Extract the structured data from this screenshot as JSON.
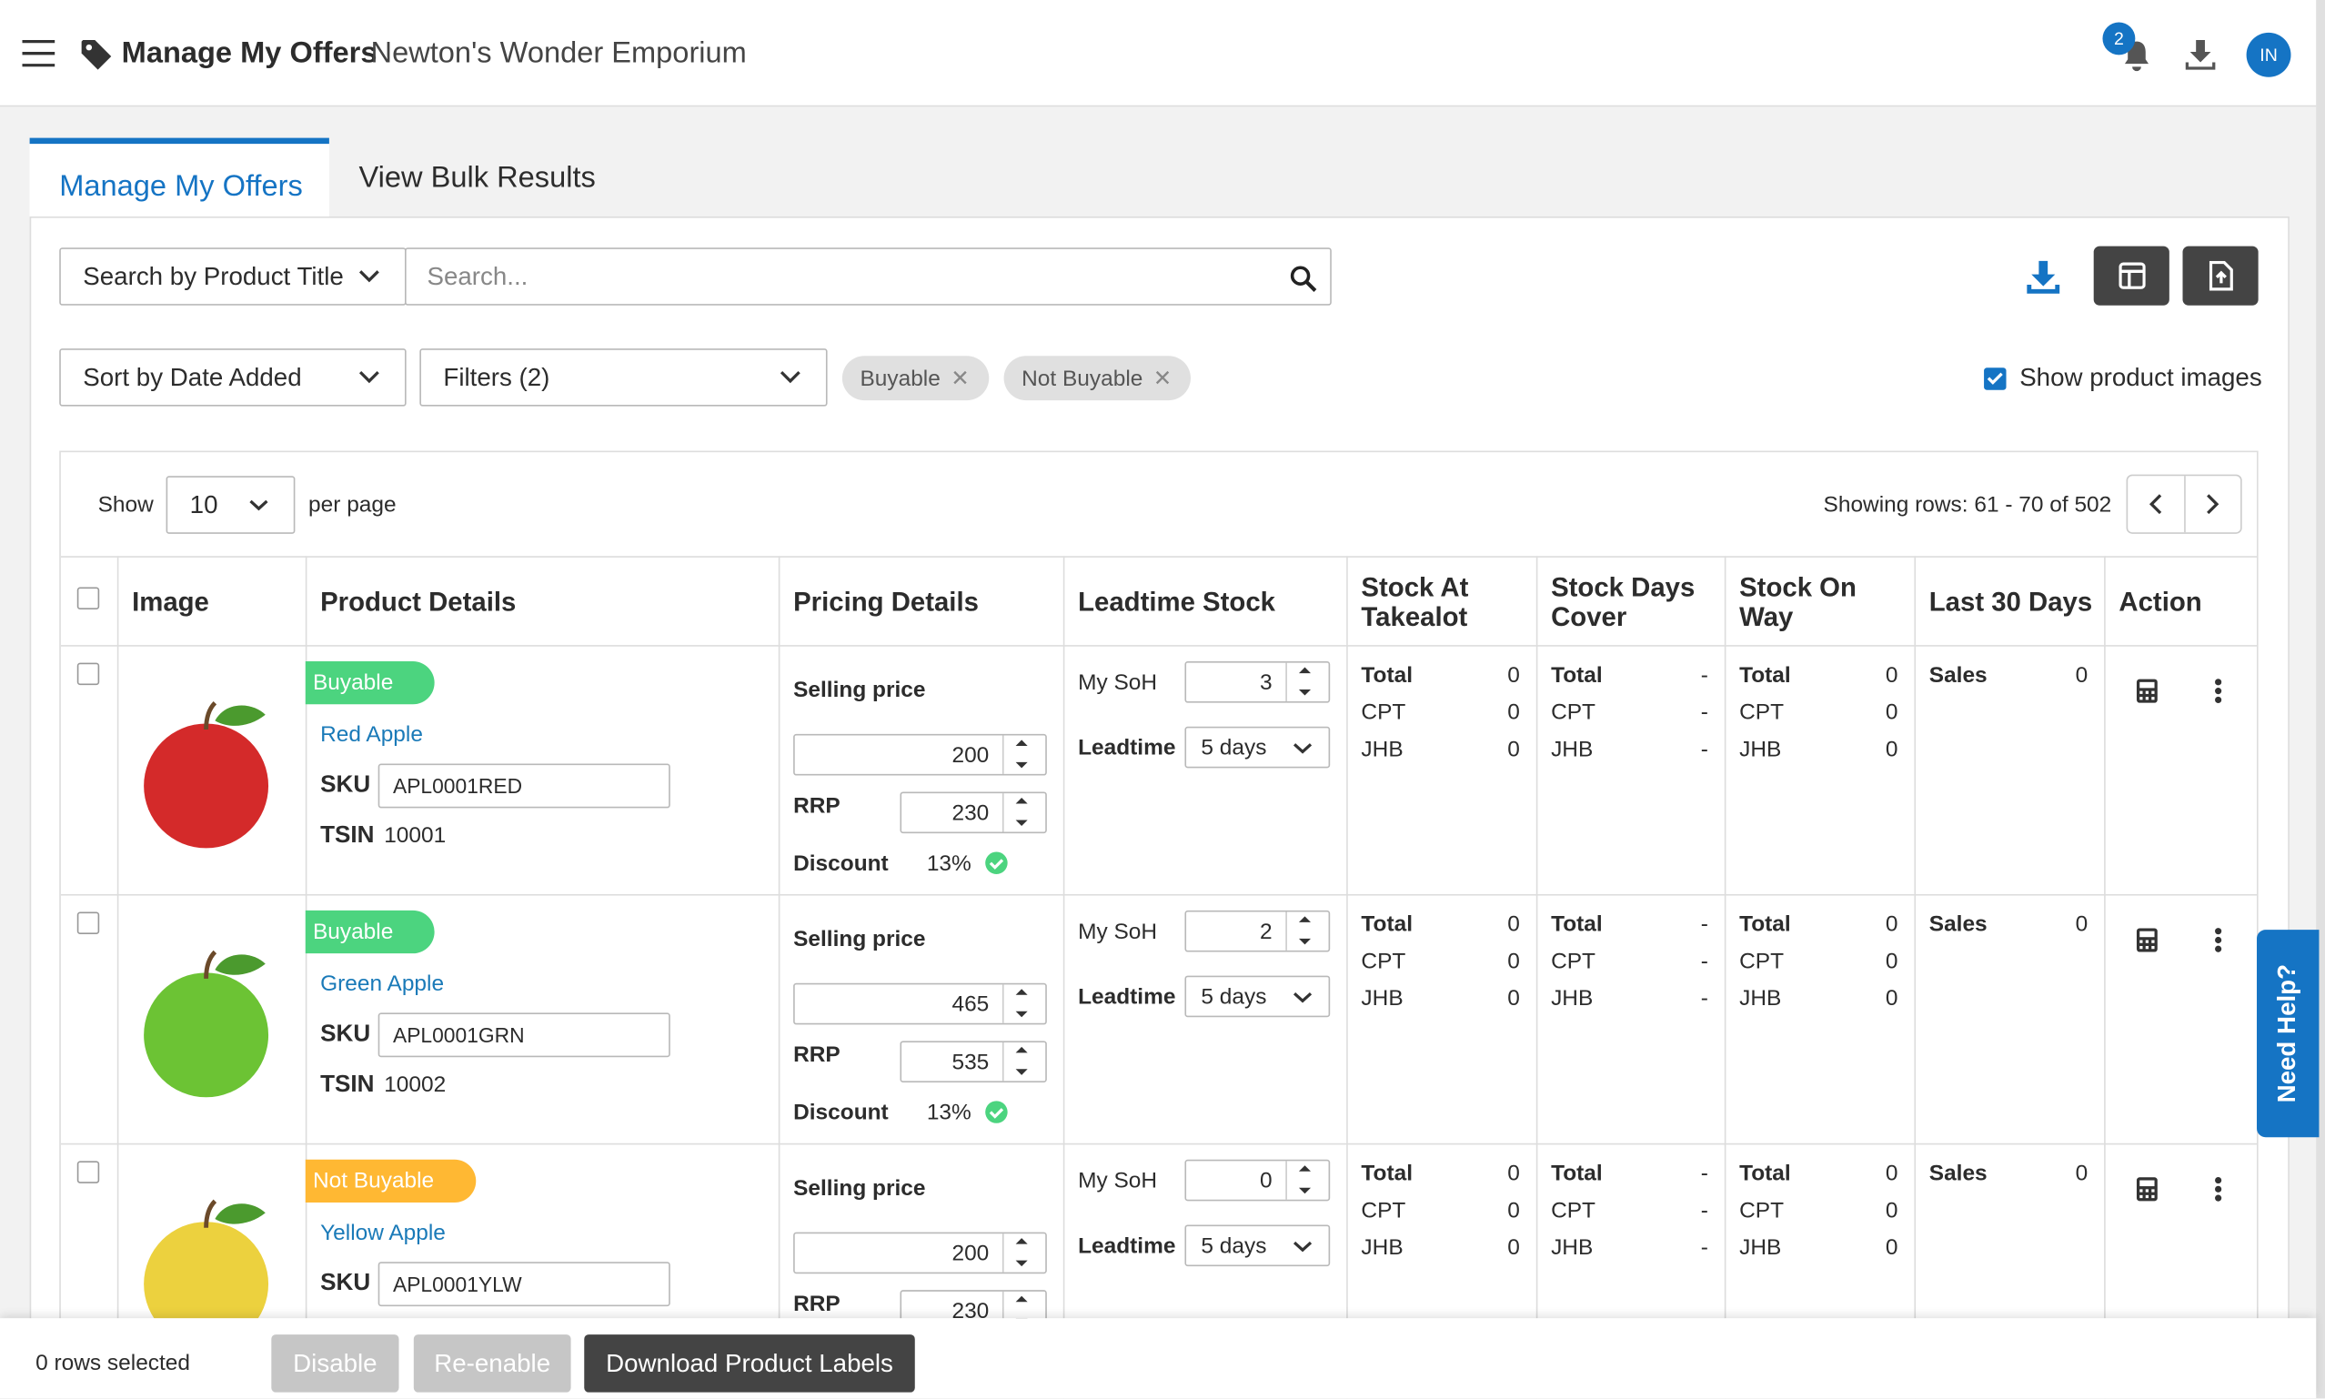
{
  "header": {
    "title": "Manage My Offers",
    "store": "Newton's Wonder Emporium",
    "notification_count": 2,
    "avatar": "IN"
  },
  "tabs": [
    "Manage My Offers",
    "View Bulk Results"
  ],
  "search": {
    "field": "Search by Product Title",
    "placeholder": "Search..."
  },
  "sort": "Sort by Date Added",
  "filters": "Filters (2)",
  "chips": [
    "Buyable",
    "Not Buyable"
  ],
  "show_images": "Show product images",
  "pagination": {
    "show": "Show",
    "per_page_value": 10,
    "per_page": "per page",
    "showing": "Showing rows: 61 - 70 of 502"
  },
  "table": {
    "columns": [
      "Image",
      "Product Details",
      "Pricing Details",
      "Leadtime Stock",
      "Stock At Takealot",
      "Stock Days Cover",
      "Stock On Way",
      "Last 30 Days",
      "Action"
    ],
    "labels": {
      "sku": "SKU",
      "tsin": "TSIN",
      "selling_price": "Selling price",
      "rrp": "RRP",
      "discount": "Discount",
      "soh": "My SoH",
      "leadtime": "Leadtime",
      "total": "Total",
      "cpt": "CPT",
      "jhb": "JHB",
      "sales": "Sales"
    },
    "rows": [
      {
        "status": "Buyable",
        "status_color": "#4cd47f",
        "name": "Red Apple",
        "sku": "APL0001RED",
        "tsin": 10001,
        "selling_price": 200,
        "rrp": 230,
        "discount": "13%",
        "soh": 3,
        "leadtime": "5 days",
        "takealot": [
          0,
          0,
          0
        ],
        "days_cover": [
          "-",
          "-",
          "-"
        ],
        "on_way": [
          0,
          0,
          0
        ],
        "sales": 0
      },
      {
        "status": "Buyable",
        "status_color": "#4cd47f",
        "name": "Green Apple",
        "sku": "APL0001GRN",
        "tsin": 10002,
        "selling_price": 465,
        "rrp": 535,
        "discount": "13%",
        "soh": 2,
        "leadtime": "5 days",
        "takealot": [
          0,
          0,
          0
        ],
        "days_cover": [
          "-",
          "-",
          "-"
        ],
        "on_way": [
          0,
          0,
          0
        ],
        "sales": 0
      },
      {
        "status": "Not Buyable",
        "status_color": "#ffb833",
        "name": "Yellow Apple",
        "sku": "APL0001YLW",
        "selling_price": 200,
        "rrp": 230,
        "soh": 0,
        "leadtime": "5 days",
        "takealot": [
          0,
          0,
          0
        ],
        "days_cover": [
          "-",
          "-",
          "-"
        ],
        "on_way": [
          0,
          0,
          0
        ],
        "sales": 0
      }
    ]
  },
  "footer": {
    "selected": "0 rows selected",
    "buttons": [
      "Disable",
      "Re-enable",
      "Download Product Labels"
    ]
  },
  "help": "Need Help?"
}
